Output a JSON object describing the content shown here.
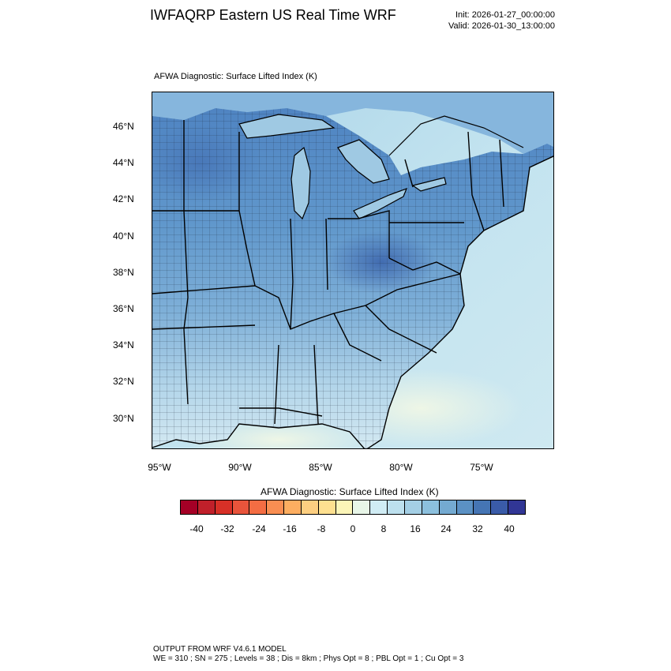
{
  "header": {
    "title": "IWFAQRP Eastern US Real Time WRF",
    "init": "Init: 2026-01-27_00:00:00",
    "valid": "Valid: 2026-01-30_13:00:00"
  },
  "map": {
    "field_label": "AFWA Diagnostic: Surface Lifted Index   (K)",
    "lat_labels": [
      "46°N",
      "44°N",
      "42°N",
      "40°N",
      "38°N",
      "36°N",
      "34°N",
      "32°N",
      "30°N"
    ],
    "lon_labels": [
      "95°W",
      "90°W",
      "85°W",
      "80°W",
      "75°W"
    ],
    "colors": {
      "ocean": "#bfe2ee",
      "ocean_far": "#cce9f1",
      "gulf_stream": "#e8f4e8",
      "land_north": "#5b8fc8",
      "land_mid": "#7aaed6",
      "land_south": "#c6e1ee",
      "lakes": "#9cc6e2",
      "canada": "#8ebbe0"
    }
  },
  "colorbar": {
    "title": "AFWA Diagnostic: Surface Lifted Index  (K)",
    "ticks": [
      "-40",
      "-32",
      "-24",
      "-16",
      "-8",
      "0",
      "8",
      "16",
      "24",
      "32",
      "40"
    ],
    "colors": [
      "#a50026",
      "#c0202a",
      "#d73027",
      "#e8543b",
      "#f46d43",
      "#f98e52",
      "#fdae61",
      "#fdcf81",
      "#fee090",
      "#fbf5b8",
      "#e8f6e8",
      "#d0ecf4",
      "#bde0ee",
      "#a4cfe5",
      "#8cc0dd",
      "#74aad1",
      "#5b91c4",
      "#4575b4",
      "#3a5ba8",
      "#313695"
    ]
  },
  "footer": {
    "line1": "OUTPUT FROM WRF V4.6.1 MODEL",
    "line2": "WE = 310 ; SN = 275 ; Levels = 38 ; Dis = 8km ; Phys Opt = 8 ; PBL Opt = 1 ; Cu Opt = 3"
  }
}
